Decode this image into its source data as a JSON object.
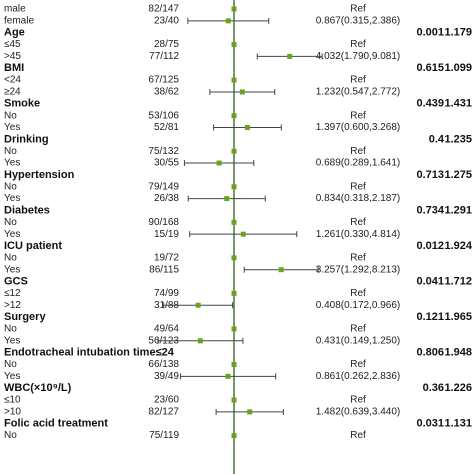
{
  "chart_data": {
    "type": "forest",
    "xscale": "log",
    "xlim": [
      0.1,
      10
    ],
    "point_color": "#6aa121",
    "line_color": "#444",
    "groups": [
      {
        "rows": [
          {
            "label": "male",
            "n": "82/147",
            "or_label": "Ref",
            "or": 1
          },
          {
            "label": "female",
            "n": "23/40",
            "or_label": "0.867(0.315,2.386)",
            "or": 0.867,
            "lo": 0.315,
            "hi": 2.386
          }
        ]
      },
      {
        "name": "Age",
        "p": "0.001",
        "stat": "1.179",
        "rows": [
          {
            "label": "≤45",
            "n": "28/75",
            "or_label": "Ref",
            "or": 1
          },
          {
            "label": ">45",
            "n": "77/112",
            "or_label": "4.032(1.790,9.081)",
            "or": 4.032,
            "lo": 1.79,
            "hi": 9.081
          }
        ]
      },
      {
        "name": "BMI",
        "p": "0.615",
        "stat": "1.099",
        "rows": [
          {
            "label": "<24",
            "n": "67/125",
            "or_label": "Ref",
            "or": 1
          },
          {
            "label": "≥24",
            "n": "38/62",
            "or_label": "1.232(0.547,2.772)",
            "or": 1.232,
            "lo": 0.547,
            "hi": 2.772
          }
        ]
      },
      {
        "name": "Smoke",
        "p": "0.439",
        "stat": "1.431",
        "rows": [
          {
            "label": "No",
            "n": "53/106",
            "or_label": "Ref",
            "or": 1
          },
          {
            "label": "Yes",
            "n": "52/81",
            "or_label": "1.397(0.600,3.268)",
            "or": 1.397,
            "lo": 0.6,
            "hi": 3.268
          }
        ]
      },
      {
        "name": "Drinking",
        "p": "0.4",
        "stat": "1.235",
        "rows": [
          {
            "label": "No",
            "n": "75/132",
            "or_label": "Ref",
            "or": 1
          },
          {
            "label": "Yes",
            "n": "30/55",
            "or_label": "0.689(0.289,1.641)",
            "or": 0.689,
            "lo": 0.289,
            "hi": 1.641
          }
        ]
      },
      {
        "name": "Hypertension",
        "p": "0.713",
        "stat": "1.275",
        "rows": [
          {
            "label": "No",
            "n": "79/149",
            "or_label": "Ref",
            "or": 1
          },
          {
            "label": "Yes",
            "n": "26/38",
            "or_label": "0.834(0.318,2.187)",
            "or": 0.834,
            "lo": 0.318,
            "hi": 2.187
          }
        ]
      },
      {
        "name": "Diabetes",
        "p": "0.734",
        "stat": "1.291",
        "rows": [
          {
            "label": "No",
            "n": "90/168",
            "or_label": "Ref",
            "or": 1
          },
          {
            "label": "Yes",
            "n": "15/19",
            "or_label": "1.261(0.330,4.814)",
            "or": 1.261,
            "lo": 0.33,
            "hi": 4.814
          }
        ]
      },
      {
        "name": "ICU patient",
        "p": "0.012",
        "stat": "1.924",
        "rows": [
          {
            "label": "No",
            "n": "19/72",
            "or_label": "Ref",
            "or": 1
          },
          {
            "label": "Yes",
            "n": "86/115",
            "or_label": "3.257(1.292,8.213)",
            "or": 3.257,
            "lo": 1.292,
            "hi": 8.213
          }
        ]
      },
      {
        "name": "GCS",
        "p": "0.041",
        "stat": "1.712",
        "rows": [
          {
            "label": "≤12",
            "n": "74/99",
            "or_label": "Ref",
            "or": 1
          },
          {
            "label": ">12",
            "n": "31/88",
            "or_label": "0.408(0.172,0.966)",
            "or": 0.408,
            "lo": 0.172,
            "hi": 0.966
          }
        ]
      },
      {
        "name": "Surgery",
        "p": "0.121",
        "stat": "1.965",
        "rows": [
          {
            "label": "No",
            "n": "49/64",
            "or_label": "Ref",
            "or": 1
          },
          {
            "label": "Yes",
            "n": "56/123",
            "or_label": "0.431(0.149,1.250)",
            "or": 0.431,
            "lo": 0.149,
            "hi": 1.25
          }
        ]
      },
      {
        "name": "Endotracheal intubation time≤24",
        "p": "0.806",
        "stat": "1.948",
        "rows": [
          {
            "label": "No",
            "n": "66/138",
            "or_label": "Ref",
            "or": 1
          },
          {
            "label": "Yes",
            "n": "39/49",
            "or_label": "0.861(0.262,2.836)",
            "or": 0.861,
            "lo": 0.262,
            "hi": 2.836
          }
        ]
      },
      {
        "name": "WBC(×10⁹/L)",
        "p": "0.36",
        "stat": "1.226",
        "rows": [
          {
            "label": "≤10",
            "n": "23/60",
            "or_label": "Ref",
            "or": 1
          },
          {
            "label": ">10",
            "n": "82/127",
            "or_label": "1.482(0.639,3.440)",
            "or": 1.482,
            "lo": 0.639,
            "hi": 3.44
          }
        ]
      },
      {
        "name": "Folic acid treatment",
        "p": "0.031",
        "stat": "1.131",
        "rows": [
          {
            "label": "No",
            "n": "75/119",
            "or_label": "Ref",
            "or": 1
          }
        ]
      }
    ]
  }
}
